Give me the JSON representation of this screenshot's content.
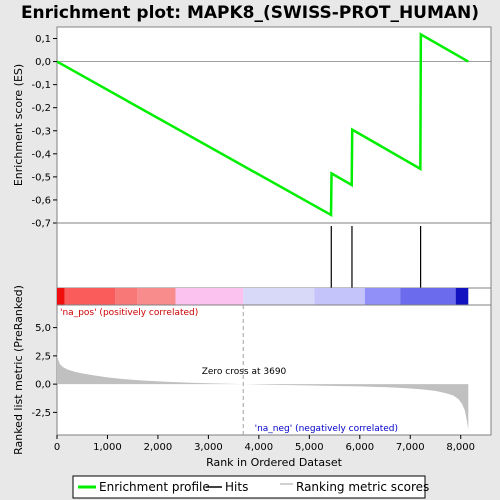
{
  "chart_data": {
    "type": "line",
    "title": "Enrichment plot: MAPK8_(SWISS-PROT_HUMAN)",
    "xlabel": "Rank in Ordered Dataset",
    "xlim": [
      0,
      8600
    ],
    "x_ticks": [
      0,
      1000,
      2000,
      3000,
      4000,
      5000,
      6000,
      7000,
      8000
    ],
    "x_tick_labels": [
      "0",
      "1,000",
      "2,000",
      "3,000",
      "4,000",
      "5,000",
      "6,000",
      "7,000",
      "8,000"
    ],
    "top_panel": {
      "ylabel": "Enrichment score (ES)",
      "ylim": [
        -0.7,
        0.15
      ],
      "y_ticks": [
        -0.7,
        -0.6,
        -0.5,
        -0.4,
        -0.3,
        -0.2,
        -0.1,
        0.0,
        0.1
      ],
      "y_tick_labels": [
        "-0,7",
        "-0,6",
        "-0,5",
        "-0,4",
        "-0,3",
        "-0,2",
        "-0,1",
        "0,0",
        "0,1"
      ],
      "series": [
        {
          "name": "Enrichment profile",
          "color": "#00ee00",
          "x": [
            0,
            5430,
            5440,
            5840,
            5850,
            7200,
            7210,
            8150
          ],
          "y": [
            0.0,
            -0.665,
            -0.485,
            -0.535,
            -0.295,
            -0.465,
            0.118,
            0.0
          ]
        }
      ]
    },
    "hits": {
      "name": "Hits",
      "color": "#000000",
      "x": [
        5435,
        5845,
        7205
      ]
    },
    "color_bar": {
      "segments": [
        {
          "from": 0,
          "to": 150,
          "color": "#ef0d0d"
        },
        {
          "from": 150,
          "to": 1150,
          "color": "#fa5c5c"
        },
        {
          "from": 1150,
          "to": 1600,
          "color": "#f87878"
        },
        {
          "from": 1600,
          "to": 2350,
          "color": "#f88c8c"
        },
        {
          "from": 2350,
          "to": 3690,
          "color": "#fbc2ef"
        },
        {
          "from": 3690,
          "to": 5100,
          "color": "#d8d8f8"
        },
        {
          "from": 5100,
          "to": 6100,
          "color": "#c4c4fa"
        },
        {
          "from": 6100,
          "to": 6800,
          "color": "#9090f8"
        },
        {
          "from": 6800,
          "to": 7900,
          "color": "#6b6bee"
        },
        {
          "from": 7900,
          "to": 8150,
          "color": "#1212c0"
        }
      ]
    },
    "bottom_panel": {
      "ylabel": "Ranked list metric (PreRanked)",
      "ylim": [
        -4.5,
        7.0
      ],
      "y_ticks": [
        -2.5,
        0.0,
        2.5,
        5.0
      ],
      "y_tick_labels": [
        "-2,5",
        "0,0",
        "2,5",
        "5,0"
      ],
      "series": [
        {
          "name": "Ranking metric scores",
          "color": "#c0c0c0",
          "x": [
            0,
            20,
            60,
            120,
            200,
            350,
            500,
            700,
            1000,
            1300,
            1700,
            2200,
            2800,
            3300,
            3690,
            4200,
            4800,
            5400,
            6000,
            6500,
            6900,
            7200,
            7500,
            7700,
            7850,
            7950,
            8020,
            8080,
            8120,
            8150
          ],
          "y": [
            2.9,
            2.2,
            1.75,
            1.5,
            1.3,
            1.1,
            0.95,
            0.8,
            0.6,
            0.45,
            0.32,
            0.2,
            0.1,
            0.04,
            0.0,
            -0.05,
            -0.1,
            -0.15,
            -0.2,
            -0.27,
            -0.35,
            -0.45,
            -0.6,
            -0.8,
            -1.0,
            -1.3,
            -1.7,
            -2.3,
            -3.2,
            -4.0
          ]
        }
      ],
      "annotations": [
        {
          "text": "'na_pos' (positively correlated)",
          "color": "#cc0000"
        },
        {
          "text": "Zero cross at 3690",
          "color": "#000000",
          "x": 3690
        },
        {
          "text": "'na_neg' (negatively correlated)",
          "color": "#0000cc"
        }
      ]
    },
    "legend": {
      "placement": "bottom",
      "entries": [
        {
          "label": "Enrichment profile",
          "color": "#00ee00"
        },
        {
          "label": "Hits",
          "color": "#000000"
        },
        {
          "label": "Ranking metric scores",
          "color": "#c0c0c0"
        }
      ]
    }
  }
}
